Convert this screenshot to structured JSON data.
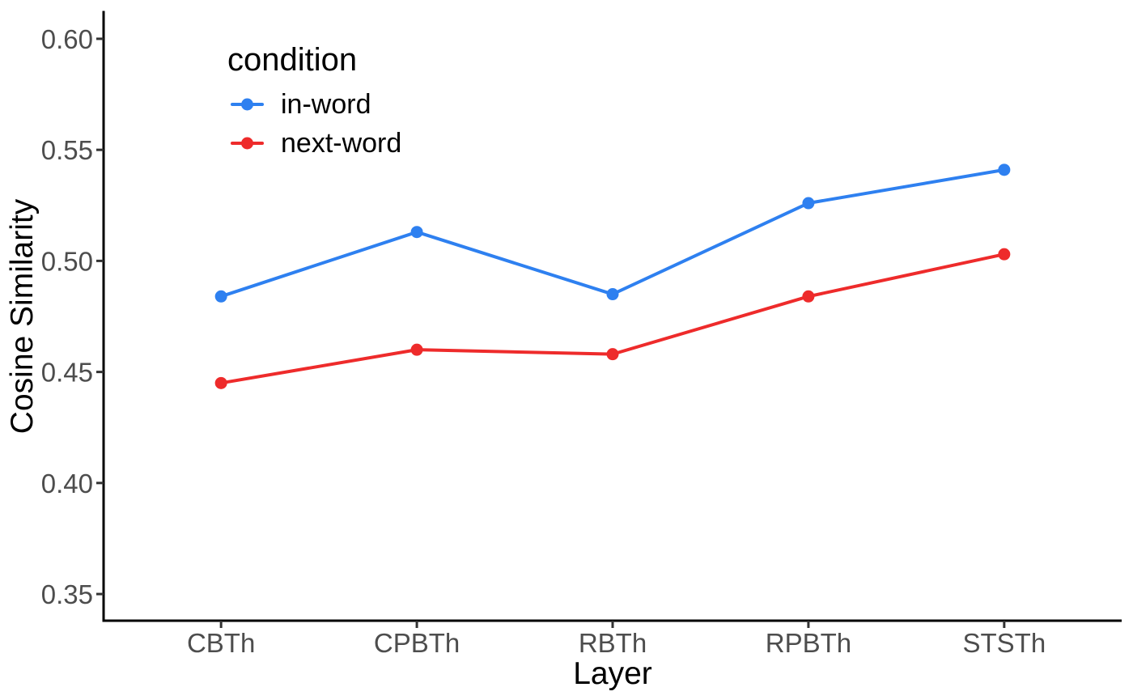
{
  "figure": {
    "background": "#FFFFFF"
  },
  "chart_data": {
    "type": "line",
    "title": "",
    "xlabel": "Layer",
    "ylabel": "Cosine Similarity",
    "categories": [
      "CBTh",
      "CPBTh",
      "RBTh",
      "RPBTh",
      "STSTh"
    ],
    "series": [
      {
        "name": "in-word",
        "color": "#2E80F0",
        "values": [
          0.484,
          0.513,
          0.485,
          0.526,
          0.541
        ]
      },
      {
        "name": "next-word",
        "color": "#EE2B2B",
        "values": [
          0.445,
          0.46,
          0.458,
          0.484,
          0.503
        ]
      }
    ],
    "yticks": [
      0.35,
      0.4,
      0.45,
      0.5,
      0.55,
      0.6
    ],
    "ytick_labels": [
      "0.35",
      "0.40",
      "0.45",
      "0.50",
      "0.55",
      "0.60"
    ],
    "ylim": [
      0.338,
      0.612
    ],
    "grid": false,
    "legend": {
      "title": "condition",
      "position": "inside-top-left"
    },
    "axis_color": "#000000",
    "tick_label_color": "#4D4D4D"
  }
}
